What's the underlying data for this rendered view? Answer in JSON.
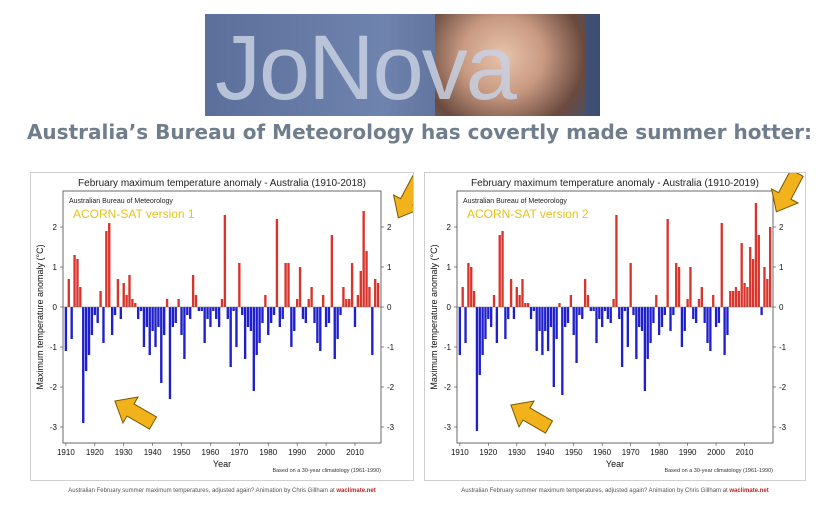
{
  "banner": {
    "logo_text": "JoNova"
  },
  "headline": "Australia’s Bureau of Meteorology has covertly made summer hotter:",
  "caption": {
    "text": "Australian February summer maximum temperatures, adjusted again? Animation by Chris Gillham at ",
    "source": "waclimate.net"
  },
  "colors": {
    "positive": "#d9342b",
    "negative": "#1f1fcc",
    "arrow": "#f2b21b",
    "version": "#e6c21c"
  },
  "chart_data": [
    {
      "type": "bar",
      "title": "February maximum temperature anomaly - Australia (1910-2018)",
      "subtitle": "Australian Bureau of Meteorology",
      "version_label": "ACORN-SAT version 1",
      "xlabel": "Year",
      "ylabel": "Maximum temperature anomaly (°C)",
      "note": "Based on a 30-year climatology (1961-1990)",
      "xlim": [
        1909,
        2019
      ],
      "ylim": [
        -3.4,
        2.9
      ],
      "xticks": [
        1910,
        1920,
        1930,
        1940,
        1950,
        1960,
        1970,
        1980,
        1990,
        2000,
        2010
      ],
      "yticks": [
        -3,
        -2,
        -1,
        0,
        1,
        2
      ],
      "x_start": 1910,
      "values": [
        -1.1,
        0.7,
        -0.8,
        1.3,
        1.2,
        0.5,
        -2.9,
        -1.6,
        -1.2,
        -0.7,
        -0.2,
        -0.4,
        0.4,
        -0.9,
        1.9,
        2.1,
        -0.7,
        -0.2,
        0.7,
        -0.3,
        0.6,
        0.3,
        0.8,
        0.2,
        0.1,
        -0.3,
        -0.1,
        -1.0,
        -0.5,
        -1.2,
        -0.6,
        -1.0,
        -0.5,
        -1.9,
        -0.7,
        0.2,
        -2.3,
        -0.5,
        -0.4,
        0.2,
        -0.7,
        -1.3,
        -0.2,
        -0.3,
        0.8,
        0.3,
        -0.1,
        -0.1,
        -0.9,
        -0.3,
        -0.5,
        -0.1,
        -0.3,
        -0.5,
        0.2,
        2.3,
        -0.3,
        -1.5,
        -0.1,
        -1.0,
        1.1,
        -0.2,
        -1.3,
        -0.5,
        -0.6,
        -2.1,
        -1.2,
        -0.9,
        -0.4,
        0.3,
        -0.7,
        -0.4,
        -0.2,
        2.2,
        -0.5,
        -0.3,
        1.1,
        1.1,
        -1.0,
        -0.6,
        0.2,
        1.0,
        -0.3,
        -0.4,
        0.2,
        0.5,
        -0.4,
        -0.9,
        -1.1,
        0.3,
        -0.5,
        -0.4,
        1.8,
        -1.3,
        -0.8,
        -0.2,
        0.5,
        0.2,
        0.2,
        1.1,
        -0.5,
        0.3,
        0.9,
        2.4,
        1.4,
        0.5,
        -1.2,
        0.7,
        0.6
      ]
    },
    {
      "type": "bar",
      "title": "February maximum temperature anomaly - Australia (1910-2019)",
      "subtitle": "Australian Bureau of Meteorology",
      "version_label": "ACORN-SAT version 2",
      "xlabel": "Year",
      "ylabel": "Maximum temperature anomaly (°C)",
      "note": "Based on a 30-year climatology (1961-1990)",
      "xlim": [
        1909,
        2020
      ],
      "ylim": [
        -3.4,
        2.9
      ],
      "xticks": [
        1910,
        1920,
        1930,
        1940,
        1950,
        1960,
        1970,
        1980,
        1990,
        2000,
        2010
      ],
      "yticks": [
        -3,
        -2,
        -1,
        0,
        1,
        2
      ],
      "x_start": 1910,
      "values": [
        -1.2,
        0.5,
        -0.9,
        1.1,
        1.0,
        0.4,
        -3.1,
        -1.7,
        -1.2,
        -0.8,
        -0.3,
        -0.5,
        0.3,
        -0.9,
        1.8,
        1.9,
        -0.8,
        -0.3,
        0.7,
        -0.3,
        0.5,
        0.3,
        0.7,
        0.1,
        0.1,
        -0.3,
        -0.1,
        -1.1,
        -0.6,
        -1.2,
        -0.6,
        -1.1,
        -0.5,
        -2.0,
        -0.8,
        0.1,
        -2.2,
        -0.5,
        -0.4,
        0.3,
        -0.7,
        -1.4,
        -0.2,
        -0.3,
        0.7,
        0.3,
        -0.1,
        -0.1,
        -0.9,
        -0.3,
        -0.5,
        -0.1,
        -0.3,
        -0.4,
        0.2,
        2.3,
        -0.3,
        -1.5,
        -0.1,
        -1.0,
        1.1,
        -0.2,
        -1.3,
        -0.5,
        -0.6,
        -2.1,
        -1.3,
        -0.9,
        -0.4,
        0.3,
        -0.7,
        -0.5,
        -0.2,
        2.2,
        -0.6,
        -0.2,
        1.1,
        1.0,
        -1.0,
        -0.6,
        0.2,
        1.0,
        -0.3,
        -0.4,
        0.2,
        0.5,
        -0.4,
        -0.9,
        -1.1,
        0.3,
        -0.5,
        -0.4,
        2.1,
        -1.2,
        -0.7,
        0.4,
        0.4,
        0.5,
        0.4,
        1.6,
        0.6,
        0.5,
        1.5,
        1.2,
        2.6,
        1.8,
        -0.2,
        1.0,
        0.7,
        2.0
      ]
    }
  ]
}
